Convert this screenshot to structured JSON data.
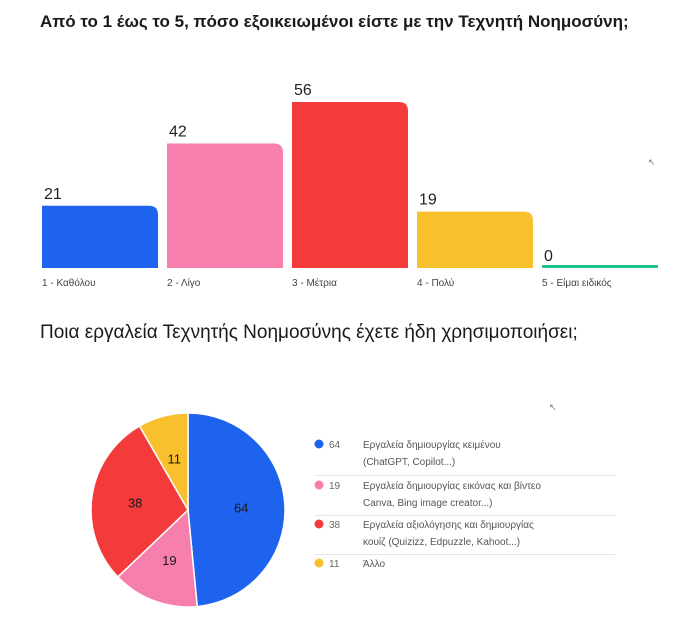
{
  "chart_data": [
    {
      "type": "bar",
      "title": "Από το 1 έως το 5, πόσο εξοικειωμένοι είστε με την Τεχνητή Νοημοσύνη;",
      "categories": [
        "1 - Καθόλου",
        "2 - Λίγο",
        "3 - Μέτρια",
        "4 - Πολύ",
        "5 - Είμαι ειδικός"
      ],
      "values": [
        21,
        42,
        56,
        19,
        0
      ],
      "colors": [
        "#1e63ee",
        "#f77fae",
        "#f33b3b",
        "#f8c02d",
        "#1fc48a"
      ],
      "ylim": [
        0,
        56
      ],
      "grid": false
    },
    {
      "type": "pie",
      "title": "Ποια εργαλεία Τεχνητής Νοημοσύνης έχετε ήδη χρησιμοποιήσει;",
      "values": [
        64,
        19,
        38,
        11
      ],
      "labels": [
        [
          "Εργαλεία δημιουργίας κειμένου",
          "(ChatGPT, Copilot...)"
        ],
        [
          "Εργαλεία δημιουργίας εικόνας και βίντεο",
          "Canva, Bing image creator...)"
        ],
        [
          "Εργαλεία αξιολόγησης και δημιουργίας",
          "κουίζ (Quizizz, Edpuzzle, Kahoot...)"
        ],
        [
          "Άλλο"
        ]
      ],
      "colors": [
        "#1e63ee",
        "#f77fae",
        "#f33b3b",
        "#f8c02d"
      ],
      "legend_position": "right"
    }
  ],
  "icons": {
    "cursor_1": "mouse-pointer-icon",
    "cursor_2": "mouse-pointer-icon"
  }
}
